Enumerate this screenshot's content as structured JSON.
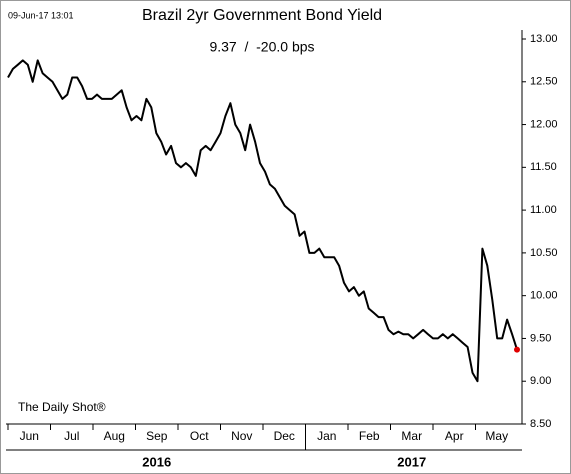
{
  "chart_data": {
    "type": "line",
    "timestamp": "09-Jun-17 13:01",
    "title": "Brazil 2yr Government Bond Yield",
    "subtitle": "9.37  /  -20.0 bps",
    "annotation": "The Daily Shot®",
    "months": [
      "Jun",
      "Jul",
      "Aug",
      "Sep",
      "Oct",
      "Nov",
      "Dec",
      "Jan",
      "Feb",
      "Mar",
      "Apr",
      "May"
    ],
    "years": [
      "2016",
      "2017"
    ],
    "color": "#000000",
    "last_point_color": "#e00000",
    "ylim": [
      8.5,
      13
    ],
    "yticks": [
      {
        "value": 8.5,
        "label": "8.50"
      },
      {
        "value": 9,
        "label": "9.00"
      },
      {
        "value": 9.5,
        "label": "9.50"
      },
      {
        "value": 10,
        "label": "10.00"
      },
      {
        "value": 10.5,
        "label": "10.50"
      },
      {
        "value": 11,
        "label": "11.00"
      },
      {
        "value": 11.5,
        "label": "11.50"
      },
      {
        "value": 12,
        "label": "12.00"
      },
      {
        "value": 12.5,
        "label": "12.50"
      },
      {
        "value": 13,
        "label": "13.00"
      }
    ],
    "values": [
      12.55,
      12.65,
      12.7,
      12.75,
      12.7,
      12.5,
      12.75,
      12.6,
      12.55,
      12.5,
      12.4,
      12.3,
      12.35,
      12.55,
      12.55,
      12.45,
      12.3,
      12.3,
      12.35,
      12.3,
      12.3,
      12.3,
      12.35,
      12.4,
      12.2,
      12.05,
      12.1,
      12.05,
      12.3,
      12.2,
      11.9,
      11.8,
      11.65,
      11.75,
      11.55,
      11.5,
      11.55,
      11.5,
      11.4,
      11.7,
      11.75,
      11.7,
      11.8,
      11.9,
      12.1,
      12.25,
      12.0,
      11.9,
      11.7,
      12.0,
      11.8,
      11.55,
      11.45,
      11.3,
      11.25,
      11.15,
      11.05,
      11.0,
      10.95,
      10.7,
      10.75,
      10.5,
      10.5,
      10.55,
      10.45,
      10.45,
      10.45,
      10.35,
      10.15,
      10.05,
      10.1,
      10.0,
      10.05,
      9.85,
      9.8,
      9.75,
      9.75,
      9.6,
      9.55,
      9.58,
      9.55,
      9.55,
      9.5,
      9.55,
      9.6,
      9.55,
      9.5,
      9.5,
      9.55,
      9.5,
      9.55,
      9.5,
      9.45,
      9.4,
      9.1,
      9.0,
      10.55,
      10.35,
      9.95,
      9.5,
      9.5,
      9.72,
      9.55,
      9.37
    ]
  }
}
